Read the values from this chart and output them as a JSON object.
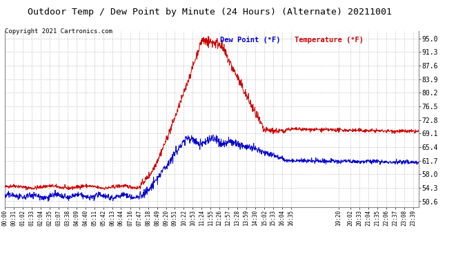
{
  "title": "Outdoor Temp / Dew Point by Minute (24 Hours) (Alternate) 20211001",
  "copyright": "Copyright 2021 Cartronics.com",
  "legend_dew": "Dew Point (°F)",
  "legend_temp": "Temperature (°F)",
  "ylabel_right_ticks": [
    50.6,
    54.3,
    58.0,
    61.7,
    65.4,
    69.1,
    72.8,
    76.5,
    80.2,
    83.9,
    87.6,
    91.3,
    95.0
  ],
  "ylim": [
    49.0,
    97.0
  ],
  "total_minutes": 1440,
  "x_tick_labels": [
    "00:00",
    "00:31",
    "01:02",
    "01:33",
    "02:04",
    "02:35",
    "03:07",
    "03:38",
    "04:09",
    "04:40",
    "05:11",
    "05:42",
    "06:13",
    "06:44",
    "07:16",
    "07:47",
    "08:18",
    "08:49",
    "09:20",
    "09:51",
    "10:22",
    "10:53",
    "11:24",
    "11:55",
    "12:26",
    "12:57",
    "13:28",
    "13:59",
    "14:30",
    "15:02",
    "15:33",
    "16:04",
    "16:35",
    "19:20",
    "20:02",
    "20:33",
    "21:04",
    "21:35",
    "22:06",
    "22:37",
    "23:08",
    "23:39"
  ],
  "x_tick_positions": [
    0,
    31,
    62,
    93,
    124,
    155,
    187,
    218,
    249,
    280,
    311,
    342,
    373,
    404,
    436,
    467,
    498,
    529,
    560,
    591,
    622,
    653,
    684,
    715,
    746,
    777,
    808,
    839,
    870,
    902,
    933,
    964,
    995,
    1160,
    1202,
    1233,
    1264,
    1295,
    1326,
    1357,
    1388,
    1419
  ],
  "background_color": "#ffffff",
  "grid_color": "#c8c8c8",
  "temp_color": "#cc0000",
  "dew_color": "#0000cc",
  "title_color": "#000000",
  "copyright_color": "#000000",
  "title_fontsize": 9.5,
  "copyright_fontsize": 6.5,
  "legend_fontsize": 7.5,
  "tick_fontsize": 5.5,
  "ytick_fontsize": 7.0
}
